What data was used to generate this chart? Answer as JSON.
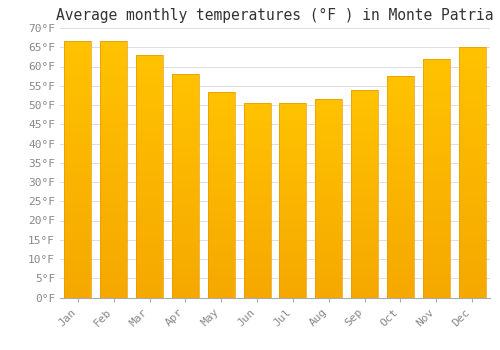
{
  "title": "Average monthly temperatures (°F ) in Monte Patria",
  "months": [
    "Jan",
    "Feb",
    "Mar",
    "Apr",
    "May",
    "Jun",
    "Jul",
    "Aug",
    "Sep",
    "Oct",
    "Nov",
    "Dec"
  ],
  "values": [
    66.5,
    66.5,
    63.0,
    58.0,
    53.5,
    50.5,
    50.5,
    51.5,
    54.0,
    57.5,
    62.0,
    65.0
  ],
  "bar_color_top": "#FFC200",
  "bar_color_bottom": "#F5A800",
  "bar_edge_color": "#E89800",
  "ylim": [
    0,
    70
  ],
  "ytick_step": 5,
  "background_color": "#ffffff",
  "grid_color": "#dddddd",
  "title_fontsize": 10.5,
  "tick_fontsize": 8,
  "font_family": "monospace"
}
